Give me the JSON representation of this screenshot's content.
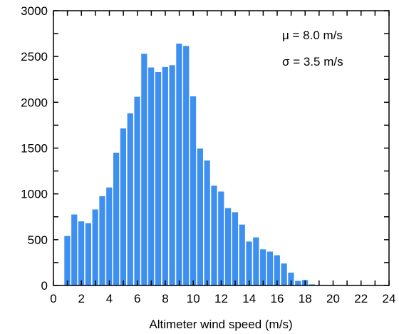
{
  "chart_data": {
    "type": "bar",
    "title": "",
    "xlabel": "Altimeter wind speed (m/s)",
    "ylabel": "",
    "xlim": [
      0,
      24
    ],
    "ylim": [
      0,
      3000
    ],
    "bin_width": 0.5,
    "x_ticks": [
      0,
      2,
      4,
      6,
      8,
      10,
      12,
      14,
      16,
      18,
      20,
      22,
      24
    ],
    "y_ticks": [
      0,
      500,
      1000,
      1500,
      2000,
      2500,
      3000
    ],
    "grid": false,
    "bar_color": "#3d8ff0",
    "bins": [
      {
        "x0": 0.75,
        "value": 540
      },
      {
        "x0": 1.25,
        "value": 775
      },
      {
        "x0": 1.75,
        "value": 700
      },
      {
        "x0": 2.25,
        "value": 680
      },
      {
        "x0": 2.75,
        "value": 830
      },
      {
        "x0": 3.25,
        "value": 975
      },
      {
        "x0": 3.75,
        "value": 1070
      },
      {
        "x0": 4.25,
        "value": 1450
      },
      {
        "x0": 4.75,
        "value": 1715
      },
      {
        "x0": 5.25,
        "value": 1880
      },
      {
        "x0": 5.75,
        "value": 2060
      },
      {
        "x0": 6.25,
        "value": 2530
      },
      {
        "x0": 6.75,
        "value": 2380
      },
      {
        "x0": 7.25,
        "value": 2330
      },
      {
        "x0": 7.75,
        "value": 2385
      },
      {
        "x0": 8.25,
        "value": 2405
      },
      {
        "x0": 8.75,
        "value": 2640
      },
      {
        "x0": 9.25,
        "value": 2615
      },
      {
        "x0": 9.75,
        "value": 2065
      },
      {
        "x0": 10.25,
        "value": 1495
      },
      {
        "x0": 10.75,
        "value": 1365
      },
      {
        "x0": 11.25,
        "value": 1090
      },
      {
        "x0": 11.75,
        "value": 1025
      },
      {
        "x0": 12.25,
        "value": 845
      },
      {
        "x0": 12.75,
        "value": 800
      },
      {
        "x0": 13.25,
        "value": 665
      },
      {
        "x0": 13.75,
        "value": 480
      },
      {
        "x0": 14.25,
        "value": 525
      },
      {
        "x0": 14.75,
        "value": 395
      },
      {
        "x0": 15.25,
        "value": 370
      },
      {
        "x0": 15.75,
        "value": 330
      },
      {
        "x0": 16.25,
        "value": 240
      },
      {
        "x0": 16.75,
        "value": 140
      },
      {
        "x0": 17.25,
        "value": 50
      },
      {
        "x0": 17.75,
        "value": 60
      },
      {
        "x0": 18.25,
        "value": 12
      },
      {
        "x0": 18.75,
        "value": 5
      },
      {
        "x0": 19.25,
        "value": 3
      },
      {
        "x0": 19.75,
        "value": 2
      },
      {
        "x0": 20.25,
        "value": 1
      }
    ],
    "annotations": [
      "μ = 8.0 m/s",
      "σ = 3.5 m/s"
    ]
  }
}
